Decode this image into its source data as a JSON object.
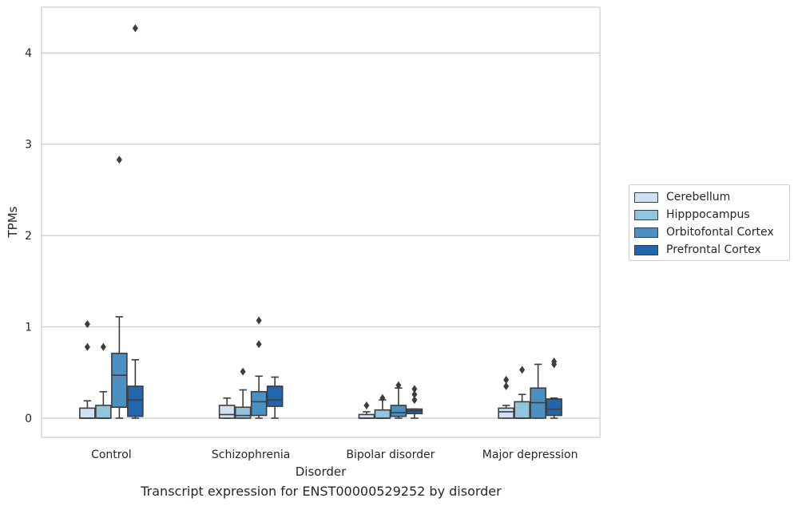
{
  "chart_data": {
    "type": "box",
    "title": "Transcript expression for ENST00000529252 by disorder",
    "xlabel": "Disorder",
    "ylabel": "TPMs",
    "ylim": [
      -0.21,
      4.5
    ],
    "yticks": [
      0,
      1,
      2,
      3,
      4
    ],
    "grid": true,
    "legend_position": "right",
    "categories": [
      "Control",
      "Schizophrenia",
      "Bipolar disorder",
      "Major depression"
    ],
    "series": [
      {
        "name": "Cerebellum",
        "color": "#cfe1f2",
        "boxes": [
          {
            "whislo": 0.0,
            "q1": 0.0,
            "med": 0.0,
            "q3": 0.11,
            "whishi": 0.19,
            "fliers": [
              0.78,
              1.03
            ]
          },
          {
            "whislo": 0.0,
            "q1": 0.0,
            "med": 0.04,
            "q3": 0.14,
            "whishi": 0.22,
            "fliers": []
          },
          {
            "whislo": 0.0,
            "q1": 0.0,
            "med": 0.0,
            "q3": 0.04,
            "whishi": 0.07,
            "fliers": [
              0.14
            ]
          },
          {
            "whislo": 0.0,
            "q1": 0.0,
            "med": 0.07,
            "q3": 0.11,
            "whishi": 0.14,
            "fliers": [
              0.35,
              0.42
            ]
          }
        ]
      },
      {
        "name": "Hipppocampus",
        "color": "#93c4de",
        "boxes": [
          {
            "whislo": 0.0,
            "q1": 0.0,
            "med": 0.0,
            "q3": 0.14,
            "whishi": 0.29,
            "fliers": [
              0.78
            ]
          },
          {
            "whislo": 0.0,
            "q1": 0.0,
            "med": 0.03,
            "q3": 0.12,
            "whishi": 0.31,
            "fliers": [
              0.51
            ]
          },
          {
            "whislo": 0.0,
            "q1": 0.0,
            "med": 0.0,
            "q3": 0.09,
            "whishi": 0.2,
            "fliers": [
              0.22
            ]
          },
          {
            "whislo": 0.0,
            "q1": 0.0,
            "med": 0.0,
            "q3": 0.18,
            "whishi": 0.26,
            "fliers": [
              0.53
            ]
          }
        ]
      },
      {
        "name": "Orbitofontal Cortex",
        "color": "#4a90c2",
        "boxes": [
          {
            "whislo": 0.0,
            "q1": 0.12,
            "med": 0.47,
            "q3": 0.71,
            "whishi": 1.11,
            "fliers": [
              2.83
            ]
          },
          {
            "whislo": 0.0,
            "q1": 0.03,
            "med": 0.18,
            "q3": 0.29,
            "whishi": 0.46,
            "fliers": [
              0.81,
              1.07
            ]
          },
          {
            "whislo": 0.0,
            "q1": 0.02,
            "med": 0.06,
            "q3": 0.14,
            "whishi": 0.33,
            "fliers": [
              0.36
            ]
          },
          {
            "whislo": 0.0,
            "q1": 0.0,
            "med": 0.17,
            "q3": 0.33,
            "whishi": 0.59,
            "fliers": []
          }
        ]
      },
      {
        "name": "Prefrontal Cortex",
        "color": "#2166ac",
        "boxes": [
          {
            "whislo": 0.0,
            "q1": 0.02,
            "med": 0.2,
            "q3": 0.35,
            "whishi": 0.64,
            "fliers": [
              4.27
            ]
          },
          {
            "whislo": 0.0,
            "q1": 0.13,
            "med": 0.2,
            "q3": 0.35,
            "whishi": 0.45,
            "fliers": []
          },
          {
            "whislo": 0.0,
            "q1": 0.05,
            "med": 0.08,
            "q3": 0.1,
            "whishi": 0.1,
            "fliers": [
              0.2,
              0.26,
              0.32
            ]
          },
          {
            "whislo": 0.0,
            "q1": 0.03,
            "med": 0.1,
            "q3": 0.21,
            "whishi": 0.22,
            "fliers": [
              0.59,
              0.62
            ]
          }
        ]
      }
    ]
  }
}
